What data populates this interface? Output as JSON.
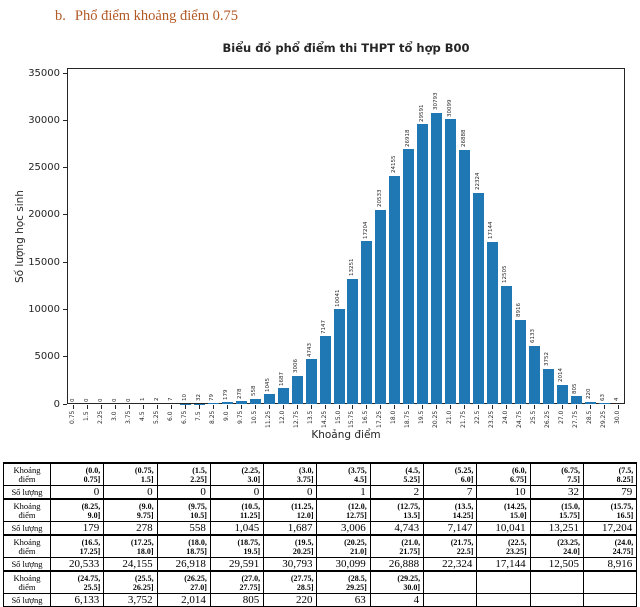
{
  "page": {
    "heading": {
      "marker": "b.",
      "text": "Phổ điểm khoảng điểm 0.75",
      "color": "#b25a26"
    }
  },
  "chart_data": {
    "type": "bar",
    "title": "Biểu đồ phổ điểm thi THPT tổ hợp B00",
    "xlabel": "Khoảng điểm",
    "ylabel": "Số lượng học sinh",
    "bar_color": "#1f77b4",
    "grid": false,
    "legend": "none",
    "ylim": [
      0,
      35000
    ],
    "yticks": [
      0,
      5000,
      10000,
      15000,
      20000,
      25000,
      30000,
      35000
    ],
    "categories": [
      "0.75",
      "1.5",
      "2.25",
      "3.0",
      "3.75",
      "4.5",
      "5.25",
      "6.0",
      "6.75",
      "7.5",
      "8.25",
      "9.0",
      "9.75",
      "10.5",
      "11.25",
      "12.0",
      "12.75",
      "13.5",
      "14.25",
      "15.0",
      "15.75",
      "16.5",
      "17.25",
      "18.0",
      "18.75",
      "19.5",
      "20.25",
      "21.0",
      "21.75",
      "22.5",
      "23.25",
      "24.0",
      "24.75",
      "25.5",
      "26.25",
      "27.0",
      "27.75",
      "28.5",
      "29.25",
      "30.0"
    ],
    "values": [
      0,
      0,
      0,
      0,
      0,
      1,
      2,
      7,
      10,
      32,
      79,
      179,
      278,
      558,
      1045,
      1687,
      3006,
      4743,
      7147,
      10041,
      13251,
      17204,
      20533,
      24155,
      26918,
      29591,
      30793,
      30099,
      26888,
      22324,
      17144,
      12505,
      8916,
      6133,
      3752,
      2014,
      805,
      220,
      63,
      4
    ]
  },
  "table": {
    "interval_row_label": "Khoảng điểm",
    "count_row_label": "Số lượng",
    "columns_per_group": 11,
    "groups": [
      {
        "intervals": [
          "(0.0,\n0.75]",
          "(0.75,\n1.5]",
          "(1.5,\n2.25]",
          "(2.25,\n3.0]",
          "(3.0,\n3.75]",
          "(3.75,\n4.5]",
          "(4.5,\n5.25]",
          "(5.25,\n6.0]",
          "(6.0,\n6.75]",
          "(6.75,\n7.5]",
          "(7.5,\n8.25]"
        ],
        "counts": [
          "0",
          "0",
          "0",
          "0",
          "0",
          "1",
          "2",
          "7",
          "10",
          "32",
          "79"
        ]
      },
      {
        "intervals": [
          "(8.25,\n9.0]",
          "(9.0,\n9.75]",
          "(9.75,\n10.5]",
          "(10.5,\n11.25]",
          "(11.25,\n12.0]",
          "(12.0,\n12.75]",
          "(12.75,\n13.5]",
          "(13.5,\n14.25]",
          "(14.25,\n15.0]",
          "(15.0,\n15.75]",
          "(15.75,\n16.5]"
        ],
        "counts": [
          "179",
          "278",
          "558",
          "1,045",
          "1,687",
          "3,006",
          "4,743",
          "7,147",
          "10,041",
          "13,251",
          "17,204"
        ]
      },
      {
        "intervals": [
          "(16.5,\n17.25]",
          "(17.25,\n18.0]",
          "(18.0,\n18.75]",
          "(18.75,\n19.5]",
          "(19.5,\n20.25]",
          "(20.25,\n21.0]",
          "(21.0,\n21.75]",
          "(21.75,\n22.5]",
          "(22.5,\n23.25]",
          "(23.25,\n24.0]",
          "(24.0,\n24.75]"
        ],
        "counts": [
          "20,533",
          "24,155",
          "26,918",
          "29,591",
          "30,793",
          "30,099",
          "26,888",
          "22,324",
          "17,144",
          "12,505",
          "8,916"
        ]
      },
      {
        "intervals": [
          "(24.75,\n25.5]",
          "(25.5,\n26.25]",
          "(26.25,\n27.0]",
          "(27.0,\n27.75]",
          "(27.75,\n28.5]",
          "(28.5,\n29.25]",
          "(29.25,\n30.0]",
          "",
          "",
          "",
          ""
        ],
        "counts": [
          "6,133",
          "3,752",
          "2,014",
          "805",
          "220",
          "63",
          "4",
          "",
          "",
          "",
          ""
        ]
      }
    ]
  }
}
